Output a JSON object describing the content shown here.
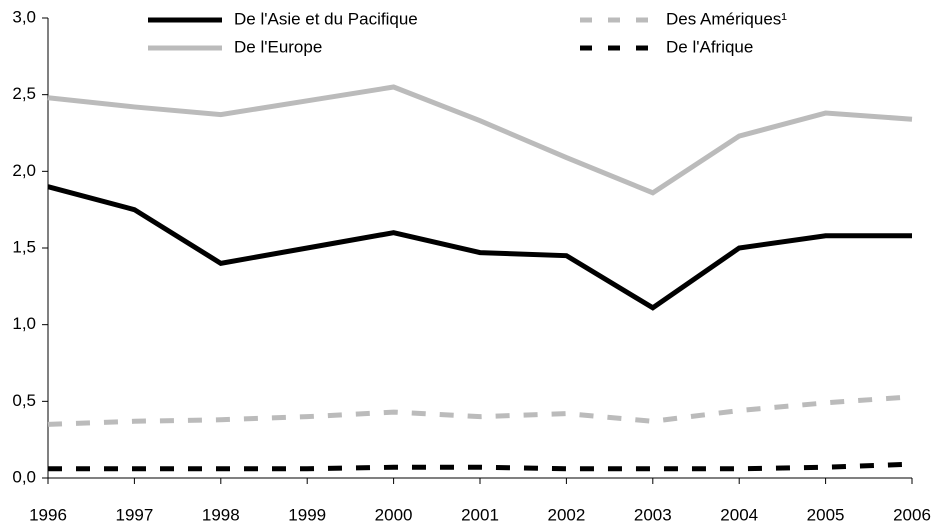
{
  "chart_data": {
    "type": "line",
    "categories": [
      "1996",
      "1997",
      "1998",
      "1999",
      "2000",
      "2001",
      "2002",
      "2003",
      "2004",
      "2005",
      "2006"
    ],
    "series": [
      {
        "name": "De l'Asie et du Pacifique",
        "color": "#000000",
        "style": "solid",
        "values": [
          1.9,
          1.75,
          1.4,
          1.5,
          1.6,
          1.47,
          1.45,
          1.11,
          1.5,
          1.58,
          1.58
        ]
      },
      {
        "name": "De l'Europe",
        "color": "#bbbbbb",
        "style": "solid",
        "values": [
          2.48,
          2.42,
          2.37,
          2.46,
          2.55,
          2.33,
          2.09,
          1.86,
          2.23,
          2.38,
          2.34
        ]
      },
      {
        "name": "Des Amériques¹",
        "color": "#bbbbbb",
        "style": "dashed",
        "values": [
          0.35,
          0.37,
          0.38,
          0.4,
          0.43,
          0.4,
          0.42,
          0.37,
          0.44,
          0.49,
          0.53
        ]
      },
      {
        "name": "De l'Afrique",
        "color": "#000000",
        "style": "dashed",
        "values": [
          0.06,
          0.06,
          0.06,
          0.06,
          0.07,
          0.07,
          0.06,
          0.06,
          0.06,
          0.07,
          0.09
        ]
      }
    ],
    "ylim": [
      0,
      3
    ],
    "yticks": [
      {
        "value": 0,
        "label": "0,0"
      },
      {
        "value": 0.5,
        "label": "0,5"
      },
      {
        "value": 1,
        "label": "1,0"
      },
      {
        "value": 1.5,
        "label": "1,5"
      },
      {
        "value": 2,
        "label": "2,0"
      },
      {
        "value": 2.5,
        "label": "2,5"
      },
      {
        "value": 3,
        "label": "3,0"
      }
    ],
    "grid": false
  }
}
